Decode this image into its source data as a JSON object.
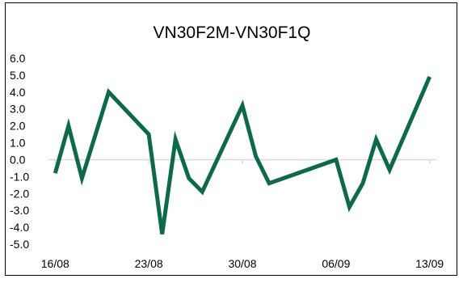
{
  "chart_data": {
    "type": "line",
    "title": "VN30F2M-VN30F1Q",
    "xlabel": "",
    "ylabel": "",
    "ylim": [
      -5.0,
      6.0
    ],
    "y_ticks": [
      "6.0",
      "5.0",
      "4.0",
      "3.0",
      "2.0",
      "1.0",
      "0.0",
      "-1.0",
      "-2.0",
      "-3.0",
      "-4.0",
      "-5.0"
    ],
    "y_tick_values": [
      6,
      5,
      4,
      3,
      2,
      1,
      0,
      -1,
      -2,
      -3,
      -4,
      -5
    ],
    "x_tick_labels": [
      "16/08",
      "23/08",
      "30/08",
      "06/09",
      "13/09"
    ],
    "x_tick_dates": [
      "2021-08-16",
      "2021-08-23",
      "2021-08-30",
      "2021-09-06",
      "2021-09-13"
    ],
    "grid": false,
    "legend": "none",
    "line_color": "#0b6b48",
    "axis_color": "#d9d9d9",
    "series": [
      {
        "x": [
          "2021-08-16",
          "2021-08-17",
          "2021-08-18",
          "2021-08-20",
          "2021-08-23",
          "2021-08-24",
          "2021-08-25",
          "2021-08-26",
          "2021-08-27",
          "2021-08-30",
          "2021-08-31",
          "2021-09-01",
          "2021-09-06",
          "2021-09-07",
          "2021-09-08",
          "2021-09-09",
          "2021-09-10",
          "2021-09-13"
        ],
        "values": [
          -0.8,
          2.0,
          -1.1,
          4.0,
          1.5,
          -4.4,
          1.2,
          -1.1,
          -1.9,
          3.2,
          0.2,
          -1.4,
          -0.0,
          -2.8,
          -1.4,
          1.2,
          -0.6,
          4.9
        ]
      }
    ]
  }
}
